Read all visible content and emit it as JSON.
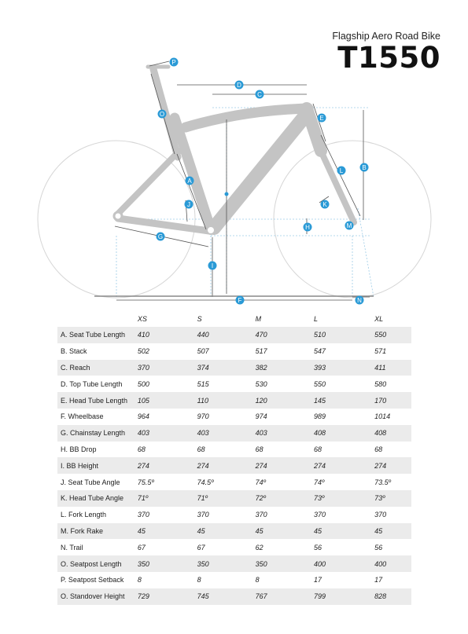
{
  "header": {
    "subtitle": "Flagship Aero Road Bike",
    "title": "T1550"
  },
  "diagram": {
    "markers": [
      "P",
      "D",
      "C",
      "O",
      "E",
      "B",
      "L",
      "A",
      "J",
      "K",
      "H",
      "M",
      "G",
      "I",
      "F",
      "N"
    ]
  },
  "table": {
    "columns": [
      "XS",
      "S",
      "M",
      "L",
      "XL"
    ],
    "rows": [
      {
        "label": "A. Seat Tube Length",
        "values": [
          "410",
          "440",
          "470",
          "510",
          "550"
        ]
      },
      {
        "label": "B. Stack",
        "values": [
          "502",
          "507",
          "517",
          "547",
          "571"
        ]
      },
      {
        "label": "C. Reach",
        "values": [
          "370",
          "374",
          "382",
          "393",
          "411"
        ]
      },
      {
        "label": "D. Top Tube Length",
        "values": [
          "500",
          "515",
          "530",
          "550",
          "580"
        ]
      },
      {
        "label": "E. Head Tube Length",
        "values": [
          "105",
          "110",
          "120",
          "145",
          "170"
        ]
      },
      {
        "label": "F. Wheelbase",
        "values": [
          "964",
          "970",
          "974",
          "989",
          "1014"
        ]
      },
      {
        "label": "G. Chainstay Length",
        "values": [
          "403",
          "403",
          "403",
          "408",
          "408"
        ]
      },
      {
        "label": "H. BB Drop",
        "values": [
          "68",
          "68",
          "68",
          "68",
          "68"
        ]
      },
      {
        "label": "I. BB Height",
        "values": [
          "274",
          "274",
          "274",
          "274",
          "274"
        ]
      },
      {
        "label": "J. Seat Tube Angle",
        "values": [
          "75.5º",
          "74.5º",
          "74º",
          "74º",
          "73.5º"
        ]
      },
      {
        "label": "K. Head Tube Angle",
        "values": [
          "71º",
          "71º",
          "72º",
          "73º",
          "73º"
        ]
      },
      {
        "label": "L. Fork Length",
        "values": [
          "370",
          "370",
          "370",
          "370",
          "370"
        ]
      },
      {
        "label": "M. Fork Rake",
        "values": [
          "45",
          "45",
          "45",
          "45",
          "45"
        ]
      },
      {
        "label": "N. Trail",
        "values": [
          "67",
          "67",
          "62",
          "56",
          "56"
        ]
      },
      {
        "label": "O. Seatpost Length",
        "values": [
          "350",
          "350",
          "350",
          "400",
          "400"
        ]
      },
      {
        "label": "P. Seatpost Setback",
        "values": [
          "8",
          "8",
          "8",
          "17",
          "17"
        ]
      },
      {
        "label": "O. Standover Height",
        "values": [
          "729",
          "745",
          "767",
          "799",
          "828"
        ]
      }
    ]
  },
  "colors": {
    "frame": "#c4c4c4",
    "marker": "#2a9ad6",
    "guide": "#9ccbe6",
    "dimension": "#555555",
    "row_shade": "#ebebeb"
  }
}
